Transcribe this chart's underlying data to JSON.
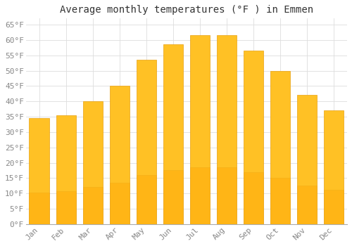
{
  "title": "Average monthly temperatures (°F ) in Emmen",
  "months": [
    "Jan",
    "Feb",
    "Mar",
    "Apr",
    "May",
    "Jun",
    "Jul",
    "Aug",
    "Sep",
    "Oct",
    "Nov",
    "Dec"
  ],
  "values": [
    34.5,
    35.5,
    40.0,
    45.0,
    53.5,
    58.5,
    61.5,
    61.5,
    56.5,
    50.0,
    42.0,
    37.0
  ],
  "bar_color_top": "#FFC125",
  "bar_color_bottom": "#FFA500",
  "bar_edge_color": "#E8A010",
  "background_color": "#FFFFFF",
  "grid_color": "#DDDDDD",
  "ylim": [
    0,
    67
  ],
  "yticks": [
    0,
    5,
    10,
    15,
    20,
    25,
    30,
    35,
    40,
    45,
    50,
    55,
    60,
    65
  ],
  "title_fontsize": 10,
  "tick_fontsize": 8,
  "tick_color": "#888888"
}
